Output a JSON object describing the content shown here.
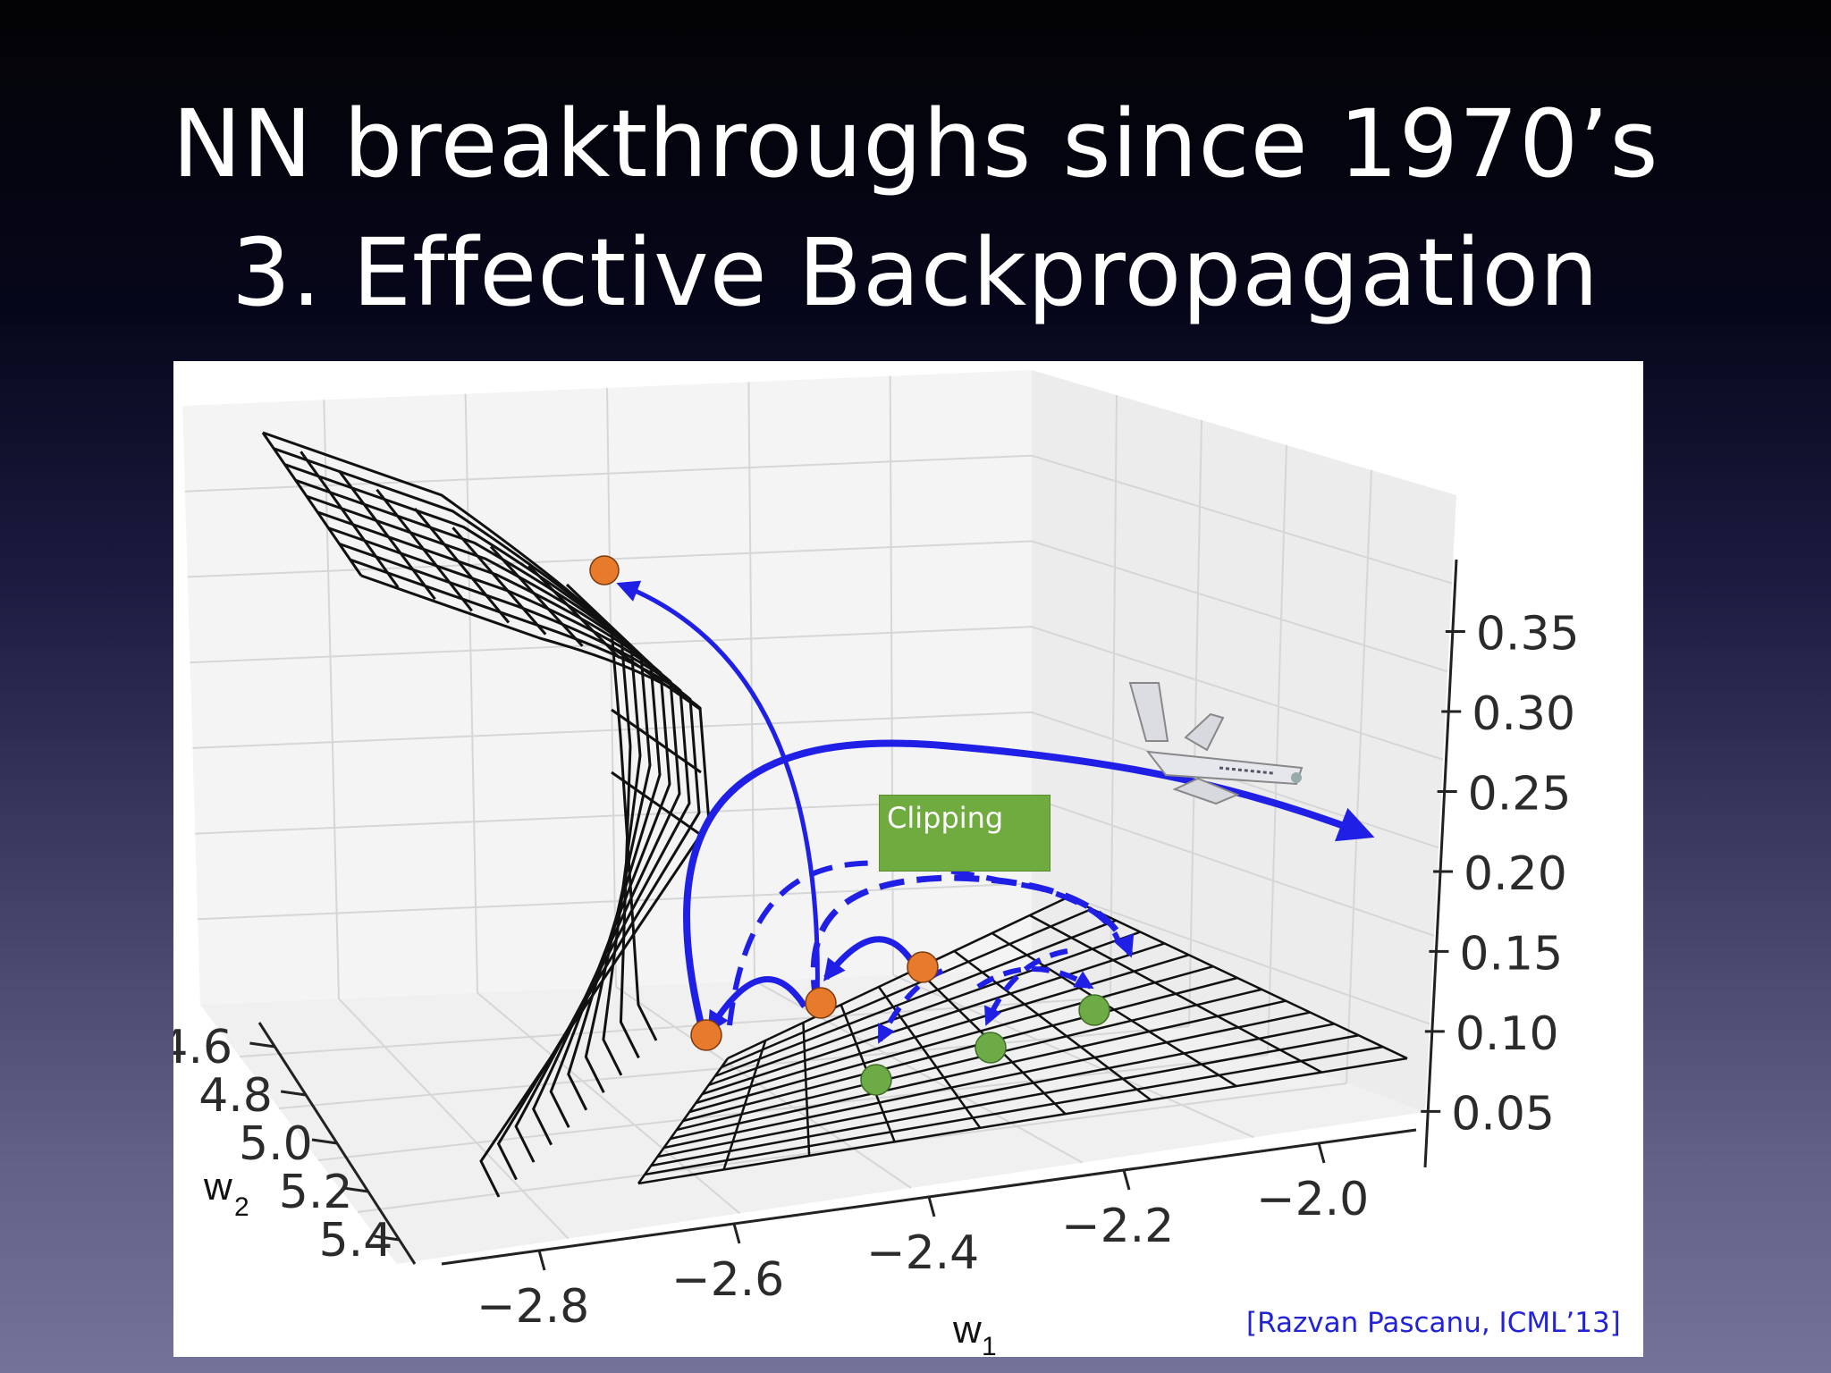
{
  "slide": {
    "title_line1": "NN breakthroughs since 1970’s",
    "title_line2": "3. Effective Backpropagation"
  },
  "figure": {
    "annotation": "Clipping",
    "citation": "[Razvan Pascanu, ICML’13]",
    "w1_label": "w",
    "w1_sub": "1",
    "w2_label": "w",
    "w2_sub": "2",
    "airplane_icon": "airplane-icon",
    "colors": {
      "arrow": "#1f1fe6",
      "point_orange": "#e87a2c",
      "point_green": "#6cab46",
      "annotation_bg": "#6fab3e",
      "citation_text": "#2323d6"
    }
  },
  "chart_data": {
    "type": "surface3d",
    "x_ticks": [
      "−2.8",
      "−2.6",
      "−2.4",
      "−2.2",
      "−2.0"
    ],
    "y_ticks": [
      "4.6",
      "4.8",
      "5.0",
      "5.2",
      "5.4"
    ],
    "z_ticks": [
      "0.35",
      "0.30",
      "0.25",
      "0.20",
      "0.15",
      "0.10",
      "0.05"
    ],
    "grid": true
  }
}
